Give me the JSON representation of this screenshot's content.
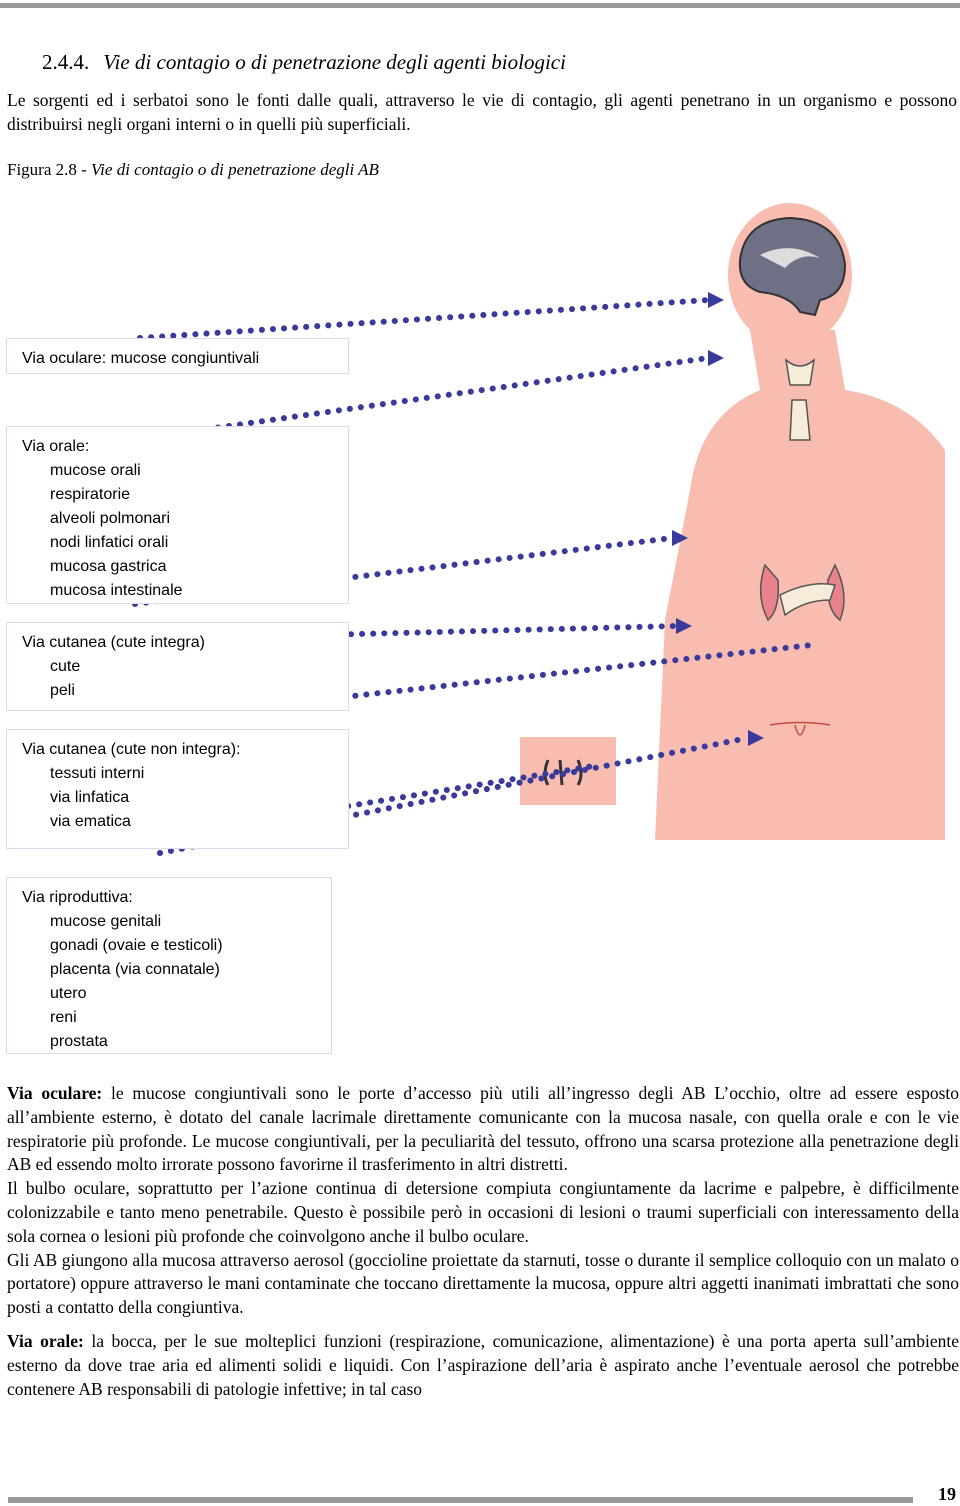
{
  "header": {
    "section_number": "2.4.4.",
    "title": "Vie di contagio o di penetrazione degli agenti biologici"
  },
  "intro": "Le sorgenti ed i serbatoi sono le fonti dalle quali, attraverso le vie di contagio, gli agenti penetrano in un organismo e possono distribuirsi negli organi interni o in quelli più superficiali.",
  "figure": {
    "label": "Figura 2.8",
    "caption": "- Vie di contagio o di penetrazione degli AB",
    "boxes": [
      {
        "title": "Via oculare: mucose congiuntivali"
      },
      {
        "title": "Via orale:",
        "items": [
          "mucose orali",
          "respiratorie",
          "alveoli polmonari",
          "nodi linfatici orali",
          "mucosa gastrica",
          "mucosa intestinale"
        ]
      },
      {
        "title": "Via cutanea (cute integra)",
        "items": [
          "cute",
          "peli"
        ]
      },
      {
        "title": "Via cutanea (cute non integra):",
        "items": [
          "tessuti interni",
          "via linfatica",
          "via ematica"
        ]
      },
      {
        "title": "Via riproduttiva:",
        "items": [
          "mucose genitali",
          "gonadi (ovaie e testicoli)",
          "placenta (via connatale)",
          "utero",
          "reni",
          "prostata"
        ]
      }
    ]
  },
  "body": [
    {
      "lead": "Via oculare:",
      "text": "le mucose congiuntivali sono le porte d’accesso più utili all’ingresso degli AB L’occhio, oltre ad essere esposto all’ambiente esterno, è dotato del canale lacrimale direttamente comunicante con la mucosa nasale, con quella orale e con le vie respiratorie più profonde. Le mucose congiuntivali, per la peculiarità del tessuto, offrono una scarsa protezione alla penetrazione degli AB ed essendo molto irrorate possono favorirne il trasferimento in altri distretti."
    },
    {
      "text": "Il bulbo oculare, soprattutto per l’azione continua di detersione compiuta congiuntamente da lacrime e palpebre, è difficilmente colonizzabile e tanto meno penetrabile. Questo è possibile però in occasioni di lesioni o traumi superficiali con interessamento della sola cornea o lesioni più profonde che coinvolgono anche il bulbo oculare."
    },
    {
      "text": "Gli AB giungono alla mucosa attraverso aerosol (goccioline proiettate da starnuti, tosse o durante il semplice colloquio con un malato o portatore) oppure attraverso le mani contaminate che toccano direttamente la mucosa, oppure altri aggetti inanimati imbrattati che sono posti a contatto della congiuntiva."
    },
    {
      "lead": "Via orale:",
      "text": "la bocca, per le sue molteplici funzioni (respirazione, comunicazione, alimentazione) è una porta aperta sull’ambiente esterno da dove trae aria ed alimenti solidi e liquidi. Con l’aspirazione dell’aria è aspirato anche l’eventuale aerosol che potrebbe contenere AB responsabili di patologie infettive; in tal caso"
    }
  ],
  "footer": {
    "page": "19"
  }
}
